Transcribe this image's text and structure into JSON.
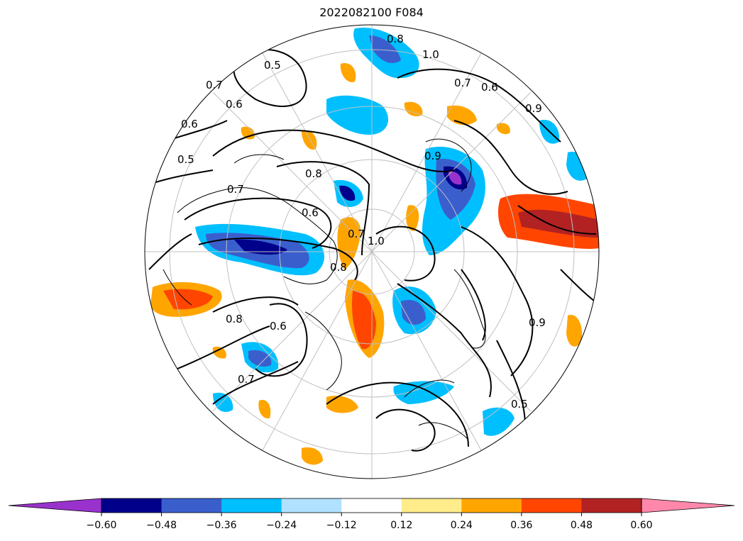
{
  "title": "2022082100 F084",
  "map": {
    "projection": "north-polar-stereographic",
    "shading_field": "anomaly",
    "contour_labels": [
      "0.5",
      "0.6",
      "0.7",
      "0.8",
      "0.9",
      "1.0",
      "0.8",
      "0.6",
      "0.7",
      "0.6",
      "0.5",
      "0.7",
      "0.8",
      "0.6",
      "0.5",
      "0.7",
      "0.8",
      "1.0",
      "0.7",
      "0.6",
      "0.9",
      "0.9"
    ]
  },
  "colorbar": {
    "colors": [
      "#9932CC",
      "#00008B",
      "#3A5FCD",
      "#00BFFF",
      "#B0E2FF",
      "#FFFFFF",
      "#FFEC8B",
      "#FFA500",
      "#FF4500",
      "#B22222",
      "#FF88AA"
    ],
    "ticks": [
      "−0.60",
      "−0.48",
      "−0.36",
      "−0.24",
      "−0.12",
      "0.12",
      "0.24",
      "0.36",
      "0.48",
      "0.60"
    ],
    "extend": "both"
  }
}
